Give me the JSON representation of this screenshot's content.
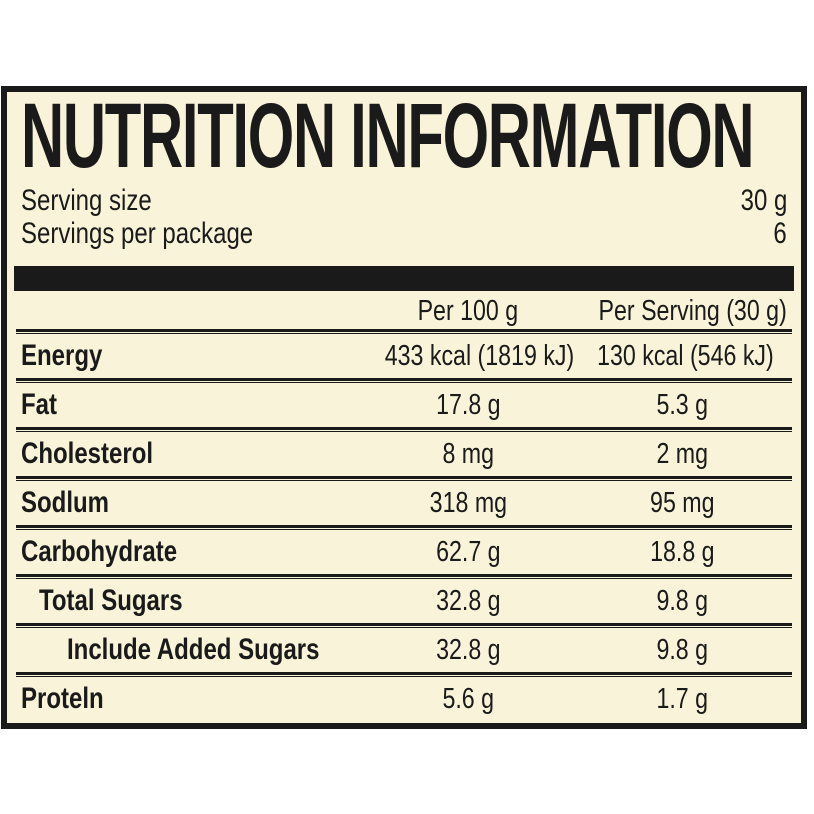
{
  "panel": {
    "title": "NUTRITION INFORMATION",
    "serving_info": {
      "serving_size_label": "Serving size",
      "serving_size_value": "30 g",
      "servings_per_package_label": "Servings per package",
      "servings_per_package_value": "6"
    },
    "columns": {
      "per_100g": "Per 100 g",
      "per_serving": "Per Serving (30 g)"
    },
    "rows": [
      {
        "label": "Energy",
        "per_100g": "433 kcal (1819 kJ)",
        "per_serving": "130 kcal (546 kJ)"
      },
      {
        "label": "Fat",
        "per_100g": "17.8 g",
        "per_serving": "5.3 g"
      },
      {
        "label": "Cholesterol",
        "per_100g": "8 mg",
        "per_serving": "2 mg"
      },
      {
        "label": "Sodlum",
        "per_100g": "318 mg",
        "per_serving": "95 mg"
      },
      {
        "label": "Carbohydrate",
        "per_100g": "62.7 g",
        "per_serving": "18.8 g"
      },
      {
        "label": "Total Sugars",
        "per_100g": "32.8 g",
        "per_serving": "9.8 g"
      },
      {
        "label": "Include Added Sugars",
        "per_100g": "32.8 g",
        "per_serving": "9.8 g"
      },
      {
        "label": "Proteln",
        "per_100g": "5.6 g",
        "per_serving": "1.7 g"
      }
    ],
    "colors": {
      "background": "#f9f4d9",
      "border": "#1a1a1a",
      "text": "#1a1a1a",
      "page_background": "#ffffff"
    }
  }
}
